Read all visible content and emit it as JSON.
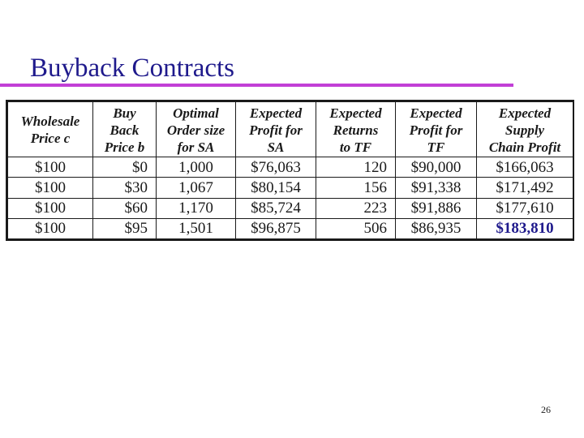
{
  "slide": {
    "title": "Buyback Contracts",
    "page_number": "26"
  },
  "table": {
    "headers": [
      [
        "Wholesale",
        "Price c"
      ],
      [
        "Buy",
        "Back",
        "Price b"
      ],
      [
        "Optimal",
        "Order size",
        "for SA"
      ],
      [
        "Expected",
        "Profit for",
        "SA"
      ],
      [
        "Expected",
        "Returns",
        "to TF"
      ],
      [
        "Expected",
        "Profit for",
        "TF"
      ],
      [
        "Expected",
        "Supply",
        "Chain Profit"
      ]
    ],
    "rows": [
      [
        "$100",
        "$0",
        "1,000",
        "$76,063",
        "120",
        "$90,000",
        "$166,063"
      ],
      [
        "$100",
        "$30",
        "1,067",
        "$80,154",
        "156",
        "$91,338",
        "$171,492"
      ],
      [
        "$100",
        "$60",
        "1,170",
        "$85,724",
        "223",
        "$91,886",
        "$177,610"
      ],
      [
        "$100",
        "$95",
        "1,501",
        "$96,875",
        "506",
        "$86,935",
        "$183,810"
      ]
    ],
    "highlight_color": "#1f1a8c"
  },
  "colors": {
    "title": "#1f1a8c",
    "rule": "#c23fd6",
    "text": "#1a1a1a"
  }
}
